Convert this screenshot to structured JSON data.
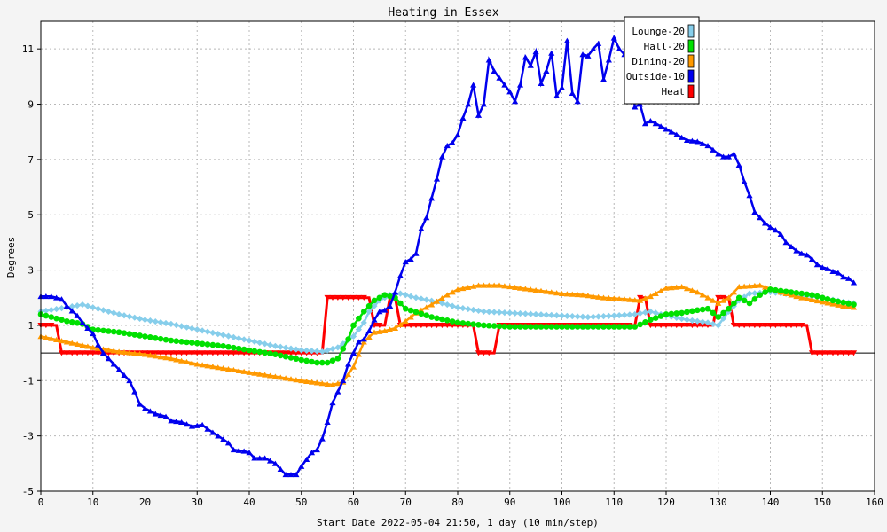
{
  "chart_data": {
    "type": "line",
    "title": "Heating in Essex",
    "xlabel": "Start Date 2022-05-04 21:50, 1 day (10 min/step)",
    "ylabel": "Degrees",
    "xlim": [
      0,
      160
    ],
    "ylim": [
      -5,
      12
    ],
    "x_ticks": [
      0,
      10,
      20,
      30,
      40,
      50,
      60,
      70,
      80,
      90,
      100,
      110,
      120,
      130,
      140,
      150,
      160
    ],
    "y_ticks": [
      -5,
      -3,
      -1,
      1,
      3,
      5,
      7,
      9,
      11
    ],
    "grid": true,
    "legend_position": "top-right",
    "series": [
      {
        "name": "Lounge-20",
        "color": "#87ceeb",
        "marker": "diamond",
        "points": [
          [
            0,
            1.5
          ],
          [
            5,
            1.65
          ],
          [
            8,
            1.75
          ],
          [
            10,
            1.65
          ],
          [
            15,
            1.4
          ],
          [
            20,
            1.2
          ],
          [
            25,
            1.05
          ],
          [
            30,
            0.85
          ],
          [
            35,
            0.65
          ],
          [
            40,
            0.45
          ],
          [
            45,
            0.25
          ],
          [
            50,
            0.1
          ],
          [
            54,
            0.05
          ],
          [
            57,
            0.2
          ],
          [
            60,
            0.6
          ],
          [
            62,
            1.1
          ],
          [
            63,
            1.5
          ],
          [
            65,
            1.9
          ],
          [
            67,
            2.1
          ],
          [
            69,
            2.15
          ],
          [
            72,
            2.0
          ],
          [
            76,
            1.85
          ],
          [
            80,
            1.65
          ],
          [
            85,
            1.5
          ],
          [
            90,
            1.45
          ],
          [
            95,
            1.4
          ],
          [
            100,
            1.35
          ],
          [
            105,
            1.3
          ],
          [
            110,
            1.35
          ],
          [
            114,
            1.4
          ],
          [
            117,
            1.5
          ],
          [
            120,
            1.35
          ],
          [
            124,
            1.2
          ],
          [
            128,
            1.1
          ],
          [
            130,
            1.0
          ],
          [
            132,
            1.5
          ],
          [
            134,
            1.9
          ],
          [
            136,
            2.15
          ],
          [
            140,
            2.2
          ],
          [
            145,
            2.1
          ],
          [
            150,
            2.0
          ],
          [
            154,
            1.85
          ],
          [
            156,
            1.8
          ]
        ]
      },
      {
        "name": "Hall-20",
        "color": "#00e000",
        "marker": "circle",
        "points": [
          [
            0,
            1.4
          ],
          [
            5,
            1.15
          ],
          [
            8,
            1.05
          ],
          [
            10,
            0.85
          ],
          [
            15,
            0.75
          ],
          [
            20,
            0.6
          ],
          [
            25,
            0.45
          ],
          [
            30,
            0.35
          ],
          [
            35,
            0.25
          ],
          [
            40,
            0.1
          ],
          [
            45,
            -0.05
          ],
          [
            50,
            -0.25
          ],
          [
            53,
            -0.35
          ],
          [
            55,
            -0.35
          ],
          [
            57,
            -0.2
          ],
          [
            59,
            0.5
          ],
          [
            60,
            1.0
          ],
          [
            62,
            1.5
          ],
          [
            64,
            1.9
          ],
          [
            66,
            2.1
          ],
          [
            68,
            2.0
          ],
          [
            70,
            1.6
          ],
          [
            75,
            1.3
          ],
          [
            80,
            1.1
          ],
          [
            85,
            1.0
          ],
          [
            90,
            0.95
          ],
          [
            95,
            0.95
          ],
          [
            100,
            0.95
          ],
          [
            105,
            0.95
          ],
          [
            110,
            0.95
          ],
          [
            114,
            0.95
          ],
          [
            117,
            1.2
          ],
          [
            120,
            1.4
          ],
          [
            123,
            1.45
          ],
          [
            126,
            1.55
          ],
          [
            128,
            1.6
          ],
          [
            130,
            1.3
          ],
          [
            132,
            1.6
          ],
          [
            134,
            2.0
          ],
          [
            136,
            1.8
          ],
          [
            138,
            2.1
          ],
          [
            140,
            2.3
          ],
          [
            144,
            2.2
          ],
          [
            148,
            2.1
          ],
          [
            152,
            1.9
          ],
          [
            156,
            1.75
          ]
        ]
      },
      {
        "name": "Dining-20",
        "color": "#ff9900",
        "marker": "triangle",
        "points": [
          [
            0,
            0.6
          ],
          [
            5,
            0.4
          ],
          [
            10,
            0.2
          ],
          [
            15,
            0.05
          ],
          [
            20,
            -0.05
          ],
          [
            25,
            -0.2
          ],
          [
            30,
            -0.4
          ],
          [
            35,
            -0.55
          ],
          [
            40,
            -0.7
          ],
          [
            45,
            -0.85
          ],
          [
            50,
            -1.0
          ],
          [
            54,
            -1.1
          ],
          [
            56,
            -1.15
          ],
          [
            58,
            -1.05
          ],
          [
            60,
            -0.5
          ],
          [
            62,
            0.4
          ],
          [
            64,
            0.75
          ],
          [
            66,
            0.8
          ],
          [
            68,
            0.9
          ],
          [
            70,
            1.15
          ],
          [
            72,
            1.45
          ],
          [
            75,
            1.75
          ],
          [
            78,
            2.1
          ],
          [
            80,
            2.3
          ],
          [
            84,
            2.45
          ],
          [
            88,
            2.45
          ],
          [
            92,
            2.35
          ],
          [
            96,
            2.25
          ],
          [
            100,
            2.15
          ],
          [
            104,
            2.1
          ],
          [
            108,
            2.0
          ],
          [
            112,
            1.95
          ],
          [
            115,
            1.9
          ],
          [
            117,
            2.05
          ],
          [
            120,
            2.35
          ],
          [
            123,
            2.4
          ],
          [
            126,
            2.2
          ],
          [
            128,
            2.0
          ],
          [
            130,
            1.8
          ],
          [
            132,
            2.0
          ],
          [
            134,
            2.4
          ],
          [
            138,
            2.45
          ],
          [
            142,
            2.2
          ],
          [
            146,
            2.0
          ],
          [
            150,
            1.85
          ],
          [
            154,
            1.7
          ],
          [
            156,
            1.65
          ]
        ]
      },
      {
        "name": "Outside-10",
        "color": "#0000ee",
        "marker": "triangle",
        "points": [
          [
            0,
            2.05
          ],
          [
            2,
            2.05
          ],
          [
            4,
            1.95
          ],
          [
            5,
            1.7
          ],
          [
            7,
            1.35
          ],
          [
            8,
            1.1
          ],
          [
            9,
            0.9
          ],
          [
            10,
            0.7
          ],
          [
            11,
            0.3
          ],
          [
            12,
            0.0
          ],
          [
            13,
            -0.2
          ],
          [
            14,
            -0.4
          ],
          [
            15,
            -0.6
          ],
          [
            16,
            -0.8
          ],
          [
            17,
            -1.0
          ],
          [
            18,
            -1.4
          ],
          [
            19,
            -1.85
          ],
          [
            20,
            -2.0
          ],
          [
            21,
            -2.1
          ],
          [
            22,
            -2.2
          ],
          [
            24,
            -2.3
          ],
          [
            25,
            -2.45
          ],
          [
            27,
            -2.5
          ],
          [
            29,
            -2.65
          ],
          [
            31,
            -2.6
          ],
          [
            32,
            -2.75
          ],
          [
            34,
            -3.0
          ],
          [
            36,
            -3.25
          ],
          [
            37,
            -3.5
          ],
          [
            39,
            -3.55
          ],
          [
            40,
            -3.6
          ],
          [
            41,
            -3.8
          ],
          [
            43,
            -3.8
          ],
          [
            44,
            -3.9
          ],
          [
            45,
            -4.0
          ],
          [
            46,
            -4.2
          ],
          [
            47,
            -4.4
          ],
          [
            49,
            -4.4
          ],
          [
            50,
            -4.1
          ],
          [
            51,
            -3.85
          ],
          [
            52,
            -3.6
          ],
          [
            53,
            -3.5
          ],
          [
            54,
            -3.1
          ],
          [
            55,
            -2.5
          ],
          [
            56,
            -1.8
          ],
          [
            57,
            -1.4
          ],
          [
            58,
            -1.0
          ],
          [
            59,
            -0.4
          ],
          [
            60,
            0.0
          ],
          [
            61,
            0.4
          ],
          [
            62,
            0.5
          ],
          [
            63,
            0.8
          ],
          [
            64,
            1.2
          ],
          [
            65,
            1.5
          ],
          [
            66,
            1.55
          ],
          [
            67,
            1.7
          ],
          [
            68,
            2.2
          ],
          [
            69,
            2.8
          ],
          [
            70,
            3.3
          ],
          [
            71,
            3.4
          ],
          [
            72,
            3.6
          ],
          [
            73,
            4.5
          ],
          [
            74,
            4.9
          ],
          [
            75,
            5.6
          ],
          [
            76,
            6.3
          ],
          [
            77,
            7.1
          ],
          [
            78,
            7.5
          ],
          [
            79,
            7.6
          ],
          [
            80,
            7.9
          ],
          [
            81,
            8.5
          ],
          [
            82,
            9.0
          ],
          [
            83,
            9.7
          ],
          [
            84,
            8.6
          ],
          [
            85,
            9.0
          ],
          [
            86,
            10.6
          ],
          [
            87,
            10.2
          ],
          [
            88,
            9.95
          ],
          [
            89,
            9.7
          ],
          [
            90,
            9.45
          ],
          [
            91,
            9.1
          ],
          [
            92,
            9.7
          ],
          [
            93,
            10.7
          ],
          [
            94,
            10.4
          ],
          [
            95,
            10.9
          ],
          [
            96,
            9.75
          ],
          [
            97,
            10.2
          ],
          [
            98,
            10.85
          ],
          [
            99,
            9.3
          ],
          [
            100,
            9.6
          ],
          [
            101,
            11.3
          ],
          [
            102,
            9.4
          ],
          [
            103,
            9.1
          ],
          [
            104,
            10.8
          ],
          [
            105,
            10.75
          ],
          [
            106,
            11.0
          ],
          [
            107,
            11.2
          ],
          [
            108,
            9.9
          ],
          [
            109,
            10.6
          ],
          [
            110,
            11.4
          ],
          [
            111,
            11.0
          ],
          [
            112,
            10.8
          ],
          [
            113,
            10.2
          ],
          [
            114,
            8.9
          ],
          [
            115,
            9.0
          ],
          [
            116,
            8.3
          ],
          [
            117,
            8.4
          ],
          [
            118,
            8.3
          ],
          [
            119,
            8.2
          ],
          [
            120,
            8.1
          ],
          [
            121,
            8.0
          ],
          [
            122,
            7.9
          ],
          [
            124,
            7.7
          ],
          [
            126,
            7.65
          ],
          [
            128,
            7.5
          ],
          [
            130,
            7.2
          ],
          [
            131,
            7.1
          ],
          [
            132,
            7.1
          ],
          [
            133,
            7.2
          ],
          [
            134,
            6.8
          ],
          [
            135,
            6.2
          ],
          [
            136,
            5.7
          ],
          [
            137,
            5.1
          ],
          [
            138,
            4.9
          ],
          [
            139,
            4.7
          ],
          [
            140,
            4.55
          ],
          [
            141,
            4.45
          ],
          [
            142,
            4.3
          ],
          [
            143,
            4.0
          ],
          [
            144,
            3.85
          ],
          [
            145,
            3.7
          ],
          [
            146,
            3.6
          ],
          [
            147,
            3.55
          ],
          [
            148,
            3.4
          ],
          [
            149,
            3.2
          ],
          [
            150,
            3.1
          ],
          [
            151,
            3.05
          ],
          [
            152,
            2.95
          ],
          [
            153,
            2.9
          ],
          [
            154,
            2.75
          ],
          [
            155,
            2.7
          ],
          [
            156,
            2.55
          ]
        ]
      },
      {
        "name": "Heat",
        "color": "#ff0000",
        "marker": "triangle-down",
        "points": [
          [
            0,
            1
          ],
          [
            3,
            1
          ],
          [
            4,
            0
          ],
          [
            54,
            0
          ],
          [
            55,
            2
          ],
          [
            63,
            2
          ],
          [
            64,
            1
          ],
          [
            66,
            1
          ],
          [
            67,
            2
          ],
          [
            68,
            2
          ],
          [
            69,
            1
          ],
          [
            83,
            1
          ],
          [
            84,
            0
          ],
          [
            87,
            0
          ],
          [
            88,
            1
          ],
          [
            114,
            1
          ],
          [
            115,
            2
          ],
          [
            116,
            2
          ],
          [
            117,
            1
          ],
          [
            129,
            1
          ],
          [
            130,
            2
          ],
          [
            132,
            2
          ],
          [
            133,
            1
          ],
          [
            147,
            1
          ],
          [
            148,
            0
          ],
          [
            156,
            0
          ]
        ]
      }
    ]
  }
}
